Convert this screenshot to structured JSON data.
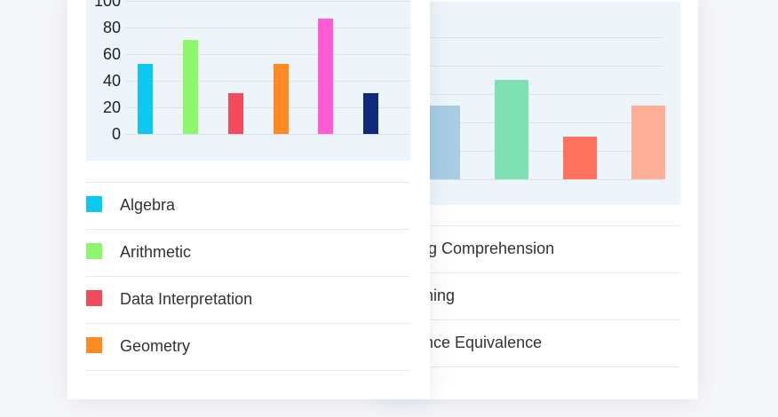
{
  "back_card": {
    "chart_data": {
      "type": "bar",
      "bars": [
        {
          "color": "#a8cde3",
          "value": 52
        },
        {
          "color": "#7fe0b5",
          "value": 70
        },
        {
          "color": "#ff7260",
          "value": 30
        },
        {
          "color": "#ffae98",
          "value": 52
        }
      ],
      "ylim": [
        0,
        100
      ]
    },
    "legend": [
      {
        "text": "ing Comprehension"
      },
      {
        "text": "oning"
      },
      {
        "text": "ence Equivalence"
      }
    ]
  },
  "front_card": {
    "chart_data": {
      "type": "bar",
      "ylim": [
        0,
        100
      ],
      "yticks": [
        "100",
        "80",
        "60",
        "40",
        "20",
        "0"
      ],
      "series": [
        {
          "name": "Algebra",
          "value": 53,
          "color": "#0dc8f2"
        },
        {
          "name": "Arithmetic",
          "value": 71,
          "color": "#8df76b"
        },
        {
          "name": "Data Interpretation",
          "value": 31,
          "color": "#f44a5e"
        },
        {
          "name": "Geometry",
          "value": 53,
          "color": "#ff8a22"
        },
        {
          "name": "",
          "value": 87,
          "color": "#ff5bd4"
        },
        {
          "name": "",
          "value": 31,
          "color": "#0f2a7c"
        }
      ]
    },
    "legend": [
      {
        "label": "Algebra",
        "color": "#0dc8f2"
      },
      {
        "label": "Arithmetic",
        "color": "#8df76b"
      },
      {
        "label": "Data Interpretation",
        "color": "#f44a5e"
      },
      {
        "label": "Geometry",
        "color": "#ff8a22"
      }
    ]
  }
}
